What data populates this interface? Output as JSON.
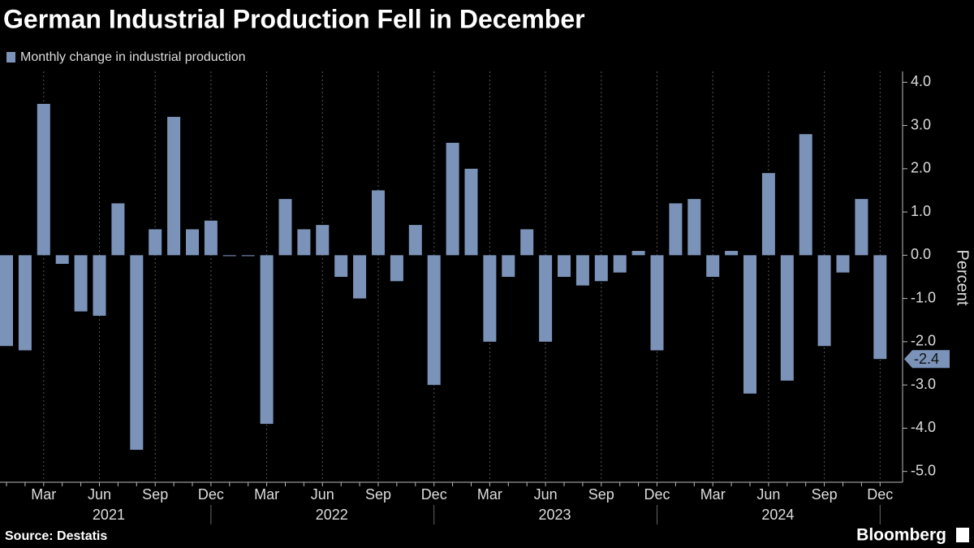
{
  "chart_data": {
    "type": "bar",
    "title": "German Industrial Production Fell in December",
    "source": "Source: Destatis",
    "brand": "Bloomberg",
    "y_axis_label": "Percent",
    "color": "#7b93b8",
    "years": [
      "2021",
      "2022",
      "2023",
      "2024"
    ],
    "categories": [
      null,
      null,
      "Mar",
      null,
      null,
      "Jun",
      null,
      null,
      "Sep",
      null,
      null,
      "Dec",
      null,
      null,
      "Mar",
      null,
      null,
      "Jun",
      null,
      null,
      "Sep",
      null,
      null,
      "Dec",
      null,
      null,
      "Mar",
      null,
      null,
      "Jun",
      null,
      null,
      "Sep",
      null,
      null,
      "Dec",
      null,
      null,
      "Mar",
      null,
      null,
      "Jun",
      null,
      null,
      "Sep",
      null,
      null,
      "Dec"
    ],
    "series": [
      {
        "name": "Monthly change in industrial production",
        "color": "#7b93b8",
        "values": [
          -2.1,
          -2.2,
          3.5,
          -0.2,
          -1.3,
          -1.4,
          1.2,
          -4.5,
          0.6,
          3.2,
          0.6,
          0.8,
          -0.02,
          -0.02,
          -3.9,
          1.3,
          0.6,
          0.7,
          -0.5,
          -1.0,
          1.5,
          -0.6,
          0.7,
          -3.0,
          2.6,
          2.0,
          -2.0,
          -0.5,
          0.6,
          -2.0,
          -0.5,
          -0.7,
          -0.6,
          -0.4,
          0.1,
          -2.2,
          1.2,
          1.3,
          -0.5,
          0.1,
          -3.2,
          1.9,
          -2.9,
          2.8,
          -2.1,
          -0.4,
          1.3,
          -2.4
        ],
        "value_labels": [
          null,
          null,
          null,
          null,
          null,
          null,
          null,
          null,
          null,
          null,
          null,
          null,
          null,
          null,
          null,
          null,
          null,
          null,
          null,
          null,
          null,
          null,
          null,
          null,
          null,
          null,
          null,
          null,
          null,
          null,
          null,
          null,
          null,
          null,
          null,
          null,
          null,
          null,
          null,
          null,
          null,
          null,
          null,
          null,
          null,
          null,
          null,
          "-2.4"
        ]
      }
    ],
    "ylim": [
      -5.25,
      4.25
    ],
    "yticks": [
      {
        "value": 4,
        "label": "4.0"
      },
      {
        "value": 3,
        "label": "3.0"
      },
      {
        "value": 2,
        "label": "2.0"
      },
      {
        "value": 1,
        "label": "1.0"
      },
      {
        "value": 0,
        "label": "0.0"
      },
      {
        "value": -1,
        "label": "-1.0"
      },
      {
        "value": -2,
        "label": "-2.0"
      },
      {
        "value": -3,
        "label": "-3.0"
      },
      {
        "value": -4,
        "label": "-4.0"
      },
      {
        "value": -5,
        "label": "-5.0"
      }
    ]
  }
}
